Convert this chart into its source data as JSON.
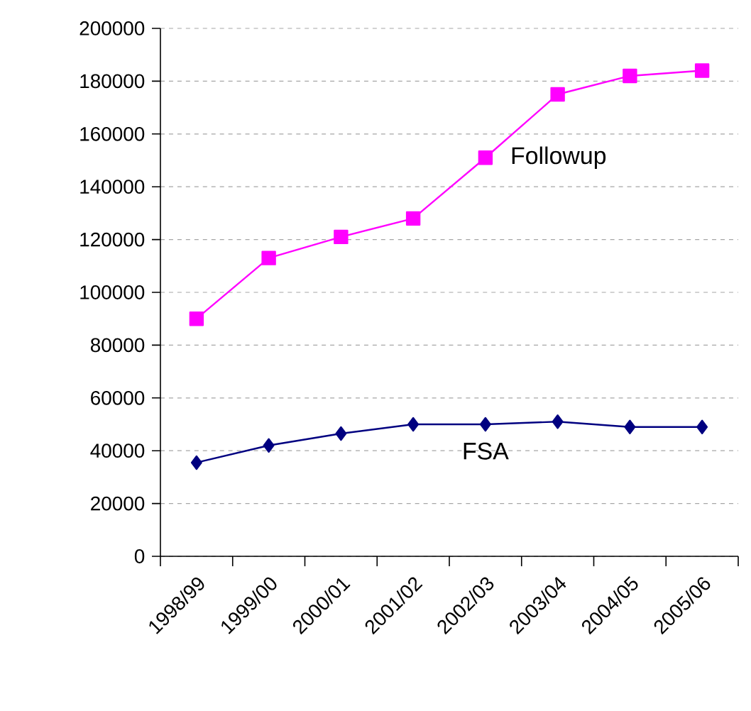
{
  "chart_data": {
    "type": "line",
    "categories": [
      "1998/99",
      "1999/00",
      "2000/01",
      "2001/02",
      "2002/03",
      "2003/04",
      "2004/05",
      "2005/06"
    ],
    "series": [
      {
        "name": "Followup",
        "color": "#ff00ff",
        "marker": "square",
        "values": [
          90000,
          113000,
          121000,
          128000,
          151000,
          175000,
          182000,
          184000
        ]
      },
      {
        "name": "FSA",
        "color": "#000080",
        "marker": "diamond",
        "values": [
          35500,
          42000,
          46500,
          50000,
          50000,
          51000,
          49000,
          49000
        ]
      }
    ],
    "ylim": [
      0,
      200000
    ],
    "yticks": [
      0,
      20000,
      40000,
      60000,
      80000,
      100000,
      120000,
      140000,
      160000,
      180000,
      200000
    ],
    "grid": "y"
  }
}
